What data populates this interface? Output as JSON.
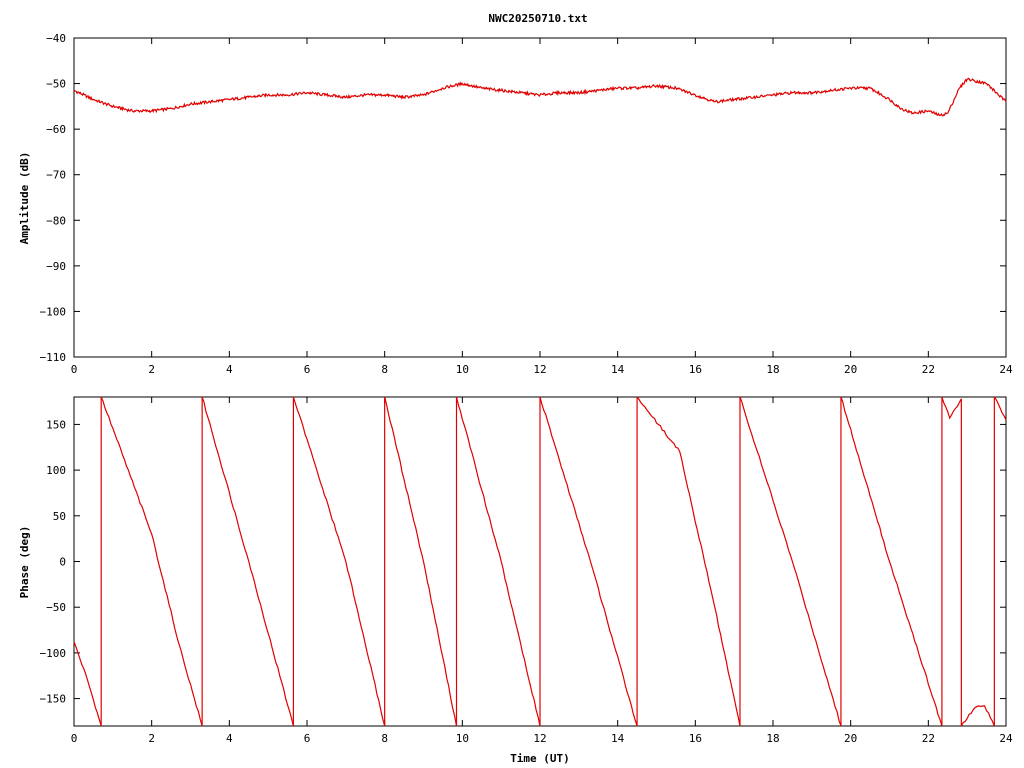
{
  "title": "NWC20250710.txt",
  "series_color": "#e00000",
  "chart_data": [
    {
      "type": "line",
      "ylabel": "Amplitude (dB)",
      "xlabel": "",
      "xlim": [
        0,
        24
      ],
      "ylim": [
        -110,
        -40
      ],
      "xticks": [
        "0",
        "2",
        "4",
        "6",
        "8",
        "10",
        "12",
        "14",
        "16",
        "18",
        "20",
        "22",
        "24"
      ],
      "yticks": [
        "-40",
        "-50",
        "-60",
        "-70",
        "-80",
        "-90",
        "-100",
        "-110"
      ],
      "grid": false,
      "x": [
        0,
        0.5,
        1.0,
        1.5,
        2.0,
        2.5,
        3.0,
        3.5,
        4.0,
        4.5,
        5.0,
        5.5,
        6.0,
        6.5,
        7.0,
        7.5,
        8.0,
        8.5,
        9.0,
        9.5,
        10.0,
        10.5,
        11.0,
        11.5,
        12.0,
        12.5,
        13.0,
        13.5,
        14.0,
        14.5,
        15.0,
        15.5,
        16.0,
        16.5,
        17.0,
        17.5,
        18.0,
        18.5,
        19.0,
        19.5,
        20.0,
        20.5,
        21.0,
        21.3,
        21.6,
        22.0,
        22.3,
        22.5,
        22.8,
        23.0,
        23.5,
        24.0
      ],
      "y": [
        -51.5,
        -53.5,
        -55,
        -56,
        -56,
        -55.5,
        -54.5,
        -54,
        -53.5,
        -53,
        -52.5,
        -52.5,
        -52,
        -52.5,
        -53,
        -52.5,
        -52.5,
        -53,
        -52.5,
        -51,
        -50,
        -51,
        -51.5,
        -52,
        -52.5,
        -52,
        -52,
        -51.5,
        -51,
        -51,
        -50.5,
        -51,
        -52.5,
        -54,
        -53.5,
        -53,
        -52.5,
        -52,
        -52,
        -51.5,
        -51,
        -51,
        -53.5,
        -55.5,
        -56.5,
        -56,
        -57,
        -56.5,
        -51,
        -49,
        -50,
        -54
      ]
    },
    {
      "type": "line",
      "ylabel": "Phase (deg)",
      "xlabel": "Time (UT)",
      "xlim": [
        0,
        24
      ],
      "ylim": [
        -180,
        180
      ],
      "xticks": [
        "0",
        "2",
        "4",
        "6",
        "8",
        "10",
        "12",
        "14",
        "16",
        "18",
        "20",
        "22",
        "24"
      ],
      "yticks": [
        "150",
        "100",
        "50",
        "0",
        "-50",
        "-100",
        "-150"
      ],
      "grid": false,
      "segments": [
        {
          "x": [
            0,
            0.35,
            0.7
          ],
          "y": [
            -88,
            -130,
            -180
          ]
        },
        {
          "x": [
            0.7,
            2.0,
            2.7,
            3.3
          ],
          "y": [
            180,
            30,
            -90,
            -180
          ]
        },
        {
          "x": [
            3.3,
            4.5,
            5.65
          ],
          "y": [
            180,
            0,
            -180
          ]
        },
        {
          "x": [
            5.65,
            7.0,
            8.0
          ],
          "y": [
            180,
            0,
            -180
          ]
        },
        {
          "x": [
            8.0,
            9.0,
            9.85
          ],
          "y": [
            180,
            0,
            -180
          ]
        },
        {
          "x": [
            9.85,
            11.0,
            12.0
          ],
          "y": [
            180,
            0,
            -180
          ]
        },
        {
          "x": [
            12.0,
            13.3,
            14.5
          ],
          "y": [
            180,
            0,
            -180
          ]
        },
        {
          "x": [
            14.5,
            15.6,
            16.5,
            17.15
          ],
          "y": [
            180,
            120,
            -50,
            -180
          ]
        },
        {
          "x": [
            17.15,
            18.5,
            19.75
          ],
          "y": [
            180,
            0,
            -180
          ]
        },
        {
          "x": [
            19.75,
            21.0,
            22.35
          ],
          "y": [
            180,
            0,
            -180
          ]
        },
        {
          "x": [
            22.35,
            22.55,
            22.85
          ],
          "y": [
            180,
            157,
            178
          ]
        },
        {
          "x": [
            22.85,
            23.2,
            23.45,
            23.7
          ],
          "y": [
            -180,
            -160,
            -158,
            -180
          ]
        },
        {
          "x": [
            23.7,
            24.0
          ],
          "y": [
            180,
            155
          ]
        }
      ]
    }
  ]
}
